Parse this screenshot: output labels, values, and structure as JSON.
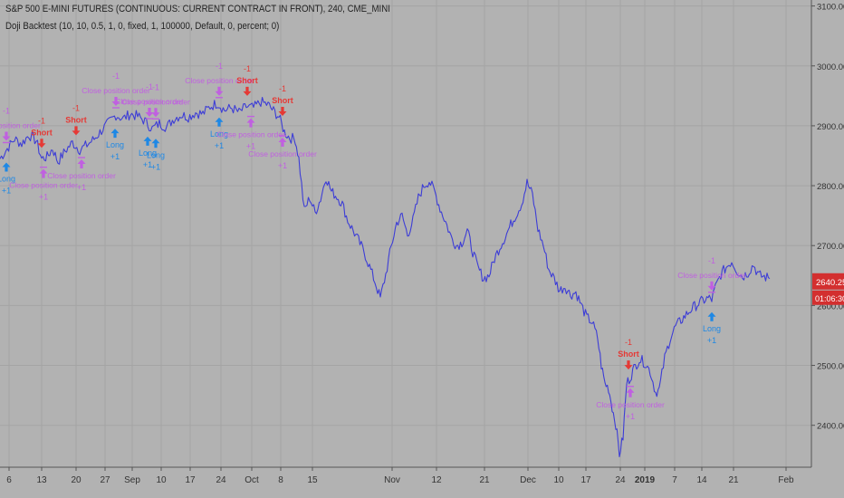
{
  "header": {
    "symbol_line": "S&P 500 E-MINI FUTURES (CONTINUOUS: CURRENT CONTRACT IN FRONT), 240, CME_MINI",
    "study_line": "Doji Backtest (10, 10, 0.5, 1, 0, fixed, 1, 100000, Default, 0, percent; 0)"
  },
  "colors": {
    "background": "#b2b2b2",
    "grid": "#a4a4a4",
    "price_line": "#3d3dd6",
    "long_marker": "#1e88e5",
    "short_marker": "#e53935",
    "close_marker": "#c060e0",
    "price_tag": "#d32f2f"
  },
  "price_tag": {
    "price": "2640.25",
    "countdown": "01:06:30"
  },
  "chart_data": {
    "type": "line",
    "title": "S&P 500 E-MINI FUTURES (CONTINUOUS: CURRENT CONTRACT IN FRONT), 240, CME_MINI",
    "y_axis": {
      "ticks": [
        "3100.00",
        "3000.00",
        "2900.00",
        "2800.00",
        "2700.00",
        "2600.00",
        "2500.00",
        "2400.00"
      ],
      "ylim": [
        2330,
        3110
      ],
      "position": "right"
    },
    "x_axis": {
      "ticks": [
        "6",
        "13",
        "20",
        "27",
        "Sep",
        "10",
        "17",
        "24",
        "Oct",
        "8",
        "15",
        "Nov",
        "12",
        "21",
        "Dec",
        "10",
        "17",
        "24",
        "2019",
        "7",
        "14",
        "21",
        "Feb"
      ],
      "bold_ticks": [
        "2019"
      ]
    },
    "grid": true,
    "series": [
      {
        "color": "#3d3dd6",
        "points": [
          [
            0,
            2845
          ],
          [
            8,
            2862
          ],
          [
            16,
            2878
          ],
          [
            24,
            2870
          ],
          [
            32,
            2885
          ],
          [
            40,
            2875
          ],
          [
            46,
            2845
          ],
          [
            52,
            2848
          ],
          [
            58,
            2862
          ],
          [
            64,
            2840
          ],
          [
            72,
            2858
          ],
          [
            80,
            2872
          ],
          [
            88,
            2860
          ],
          [
            96,
            2868
          ],
          [
            104,
            2878
          ],
          [
            112,
            2892
          ],
          [
            120,
            2905
          ],
          [
            128,
            2918
          ],
          [
            136,
            2912
          ],
          [
            144,
            2920
          ],
          [
            152,
            2916
          ],
          [
            160,
            2908
          ],
          [
            168,
            2895
          ],
          [
            176,
            2904
          ],
          [
            184,
            2898
          ],
          [
            192,
            2912
          ],
          [
            200,
            2918
          ],
          [
            208,
            2915
          ],
          [
            216,
            2922
          ],
          [
            224,
            2920
          ],
          [
            232,
            2932
          ],
          [
            240,
            2938
          ],
          [
            248,
            2926
          ],
          [
            256,
            2930
          ],
          [
            264,
            2922
          ],
          [
            272,
            2932
          ],
          [
            280,
            2930
          ],
          [
            288,
            2940
          ],
          [
            296,
            2935
          ],
          [
            302,
            2925
          ],
          [
            308,
            2915
          ],
          [
            314,
            2890
          ],
          [
            320,
            2880
          ],
          [
            326,
            2878
          ],
          [
            330,
            2845
          ],
          [
            336,
            2758
          ],
          [
            342,
            2780
          ],
          [
            348,
            2755
          ],
          [
            354,
            2778
          ],
          [
            360,
            2815
          ],
          [
            366,
            2790
          ],
          [
            372,
            2782
          ],
          [
            378,
            2770
          ],
          [
            384,
            2742
          ],
          [
            390,
            2725
          ],
          [
            396,
            2708
          ],
          [
            402,
            2690
          ],
          [
            408,
            2665
          ],
          [
            414,
            2640
          ],
          [
            420,
            2612
          ],
          [
            426,
            2652
          ],
          [
            432,
            2698
          ],
          [
            438,
            2738
          ],
          [
            444,
            2750
          ],
          [
            450,
            2718
          ],
          [
            456,
            2742
          ],
          [
            462,
            2780
          ],
          [
            468,
            2800
          ],
          [
            474,
            2808
          ],
          [
            480,
            2790
          ],
          [
            486,
            2762
          ],
          [
            492,
            2740
          ],
          [
            498,
            2715
          ],
          [
            504,
            2700
          ],
          [
            510,
            2705
          ],
          [
            516,
            2725
          ],
          [
            522,
            2690
          ],
          [
            528,
            2662
          ],
          [
            534,
            2645
          ],
          [
            540,
            2650
          ],
          [
            546,
            2678
          ],
          [
            552,
            2698
          ],
          [
            558,
            2715
          ],
          [
            564,
            2735
          ],
          [
            570,
            2752
          ],
          [
            576,
            2770
          ],
          [
            582,
            2805
          ],
          [
            588,
            2785
          ],
          [
            594,
            2728
          ],
          [
            600,
            2700
          ],
          [
            606,
            2660
          ],
          [
            612,
            2645
          ],
          [
            618,
            2625
          ],
          [
            624,
            2632
          ],
          [
            630,
            2618
          ],
          [
            636,
            2622
          ],
          [
            642,
            2600
          ],
          [
            648,
            2580
          ],
          [
            654,
            2572
          ],
          [
            660,
            2545
          ],
          [
            664,
            2500
          ],
          [
            668,
            2470
          ],
          [
            672,
            2462
          ],
          [
            676,
            2430
          ],
          [
            680,
            2402
          ],
          [
            684,
            2352
          ],
          [
            688,
            2380
          ],
          [
            692,
            2470
          ],
          [
            696,
            2480
          ],
          [
            700,
            2495
          ],
          [
            706,
            2510
          ],
          [
            712,
            2505
          ],
          [
            718,
            2490
          ],
          [
            724,
            2455
          ],
          [
            728,
            2460
          ],
          [
            734,
            2512
          ],
          [
            740,
            2545
          ],
          [
            746,
            2565
          ],
          [
            752,
            2575
          ],
          [
            758,
            2585
          ],
          [
            764,
            2595
          ],
          [
            770,
            2602
          ],
          [
            776,
            2608
          ],
          [
            782,
            2612
          ],
          [
            786,
            2610
          ],
          [
            790,
            2630
          ],
          [
            796,
            2652
          ],
          [
            802,
            2664
          ],
          [
            808,
            2674
          ],
          [
            814,
            2658
          ],
          [
            820,
            2648
          ],
          [
            826,
            2655
          ],
          [
            832,
            2668
          ],
          [
            838,
            2650
          ],
          [
            844,
            2648
          ],
          [
            850,
            2645
          ]
        ]
      }
    ],
    "annotations": [
      {
        "kind": "long",
        "x": 7,
        "label": "Long",
        "qty": "+1"
      },
      {
        "kind": "close",
        "x": 7,
        "label": "Close position order",
        "qty": "-1"
      },
      {
        "kind": "short",
        "x": 46,
        "label": "Short",
        "qty": "-1"
      },
      {
        "kind": "close",
        "x": 48,
        "label": "Close position order",
        "qty": "+1"
      },
      {
        "kind": "short",
        "x": 84,
        "label": "Short",
        "qty": "-1"
      },
      {
        "kind": "close",
        "x": 90,
        "label": "Close position order",
        "qty": "+1"
      },
      {
        "kind": "long",
        "x": 127,
        "label": "Long",
        "qty": "+1"
      },
      {
        "kind": "close",
        "x": 128,
        "label": "Close position order",
        "qty": "-1"
      },
      {
        "kind": "close",
        "x": 165,
        "label": "Close position order",
        "qty": "-1"
      },
      {
        "kind": "long",
        "x": 163,
        "label": "Long",
        "qty": "+1"
      },
      {
        "kind": "close",
        "x": 172,
        "label": "Close position order",
        "qty": "-1"
      },
      {
        "kind": "long",
        "x": 172,
        "label": "Long",
        "qty": "+1"
      },
      {
        "kind": "close",
        "x": 242,
        "label": "Close position order",
        "qty": "-1"
      },
      {
        "kind": "long",
        "x": 242,
        "label": "Long",
        "qty": "+1"
      },
      {
        "kind": "short",
        "x": 273,
        "label": "Short",
        "qty": "-1"
      },
      {
        "kind": "close",
        "x": 277,
        "label": "Close position order",
        "qty": "+1"
      },
      {
        "kind": "short",
        "x": 312,
        "label": "Short",
        "qty": "-1"
      },
      {
        "kind": "close",
        "x": 312,
        "label": "Close position order",
        "qty": "+1"
      },
      {
        "kind": "short",
        "x": 694,
        "label": "Short",
        "qty": "-1"
      },
      {
        "kind": "close",
        "x": 696,
        "label": "Close position order",
        "qty": "+1"
      },
      {
        "kind": "close",
        "x": 786,
        "label": "Close position order",
        "qty": "-1"
      },
      {
        "kind": "long",
        "x": 786,
        "label": "Long",
        "qty": "+1"
      }
    ]
  }
}
